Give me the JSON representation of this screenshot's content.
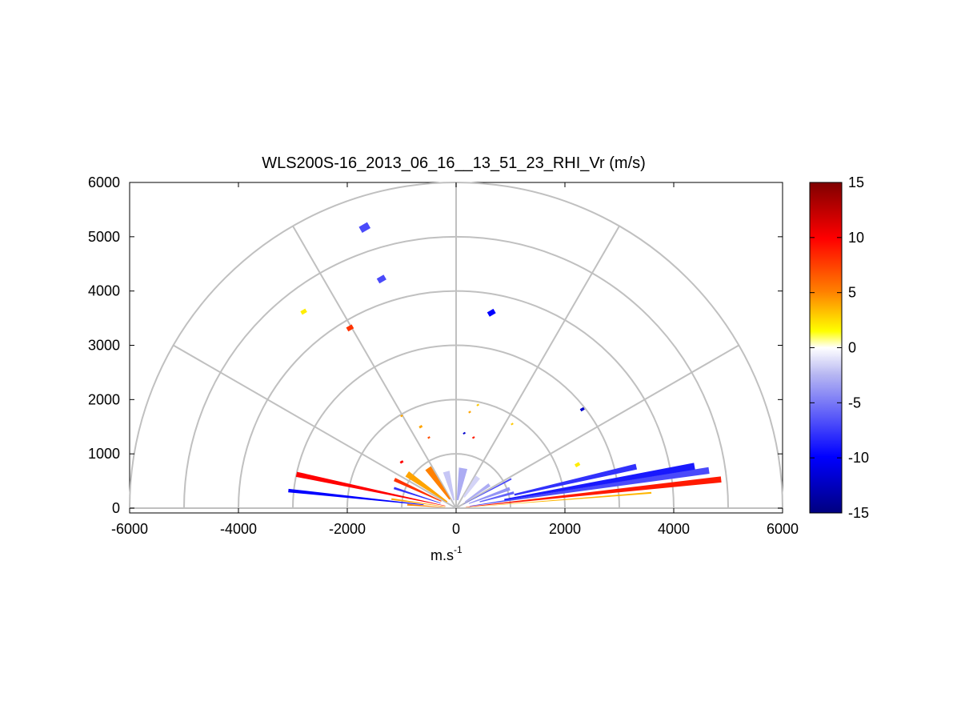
{
  "chart_data": {
    "type": "rhi",
    "title": "WLS200S-16_2013_06_16__13_51_23_RHI_Vr (m/s)",
    "xlabel": "m.s",
    "xlabel_superscript": "-1",
    "xlim": [
      -6000,
      6000
    ],
    "ylim": [
      0,
      6000
    ],
    "x_ticks": [
      "-6000",
      "-4000",
      "-2000",
      "0",
      "2000",
      "4000",
      "6000"
    ],
    "y_ticks": [
      "0",
      "1000",
      "2000",
      "3000",
      "4000",
      "5000",
      "6000"
    ],
    "grid": {
      "range_rings": [
        1000,
        2000,
        3000,
        4000,
        5000,
        6000
      ],
      "spokes_deg": [
        0,
        30,
        60,
        90,
        120,
        150,
        180
      ]
    },
    "colorbar": {
      "range": [
        -15,
        15
      ],
      "ticks": [
        "15",
        "10",
        "5",
        "0",
        "-5",
        "-10",
        "-15"
      ],
      "colors": [
        "#00007f",
        "#0000ff",
        "#ffffff",
        "#ffff00",
        "#ff8000",
        "#ff0000",
        "#7f0000"
      ]
    },
    "rays": [
      {
        "az": 6.2,
        "r0": 180,
        "r1": 4900,
        "v": 9,
        "w": 1.3
      },
      {
        "az": 4.5,
        "r0": 150,
        "r1": 3600,
        "v": 3.5,
        "w": 0.5
      },
      {
        "az": 8.5,
        "r0": 250,
        "r1": 4700,
        "v": -7,
        "w": 1.5
      },
      {
        "az": 10,
        "r0": 900,
        "r1": 4450,
        "v": -9,
        "w": 1.6
      },
      {
        "az": 13,
        "r0": 1100,
        "r1": 3400,
        "v": -8,
        "w": 1.8
      },
      {
        "az": 15,
        "r0": 450,
        "r1": 1100,
        "v": -6,
        "w": 2.5
      },
      {
        "az": 20,
        "r0": 250,
        "r1": 1050,
        "v": -4,
        "w": 3.5
      },
      {
        "az": 28,
        "r0": 150,
        "r1": 1150,
        "v": -7,
        "w": 1.5
      },
      {
        "az": 35,
        "r0": 200,
        "r1": 750,
        "v": -3,
        "w": 5
      },
      {
        "az": 55,
        "r0": 250,
        "r1": 700,
        "v": -1.5,
        "w": 8
      },
      {
        "az": 80,
        "r0": 150,
        "r1": 750,
        "v": -3,
        "w": 12
      },
      {
        "az": 105,
        "r0": 150,
        "r1": 700,
        "v": -2,
        "w": 10
      },
      {
        "az": 125,
        "r0": 200,
        "r1": 900,
        "v": 5,
        "w": 8
      },
      {
        "az": 145,
        "r0": 200,
        "r1": 1100,
        "v": 4,
        "w": 6
      },
      {
        "az": 155,
        "r0": 300,
        "r1": 1250,
        "v": 8,
        "w": 3
      },
      {
        "az": 162,
        "r0": 300,
        "r1": 1200,
        "v": -8,
        "w": 2
      },
      {
        "az": 168,
        "r0": 200,
        "r1": 3000,
        "v": 10,
        "w": 1.8
      },
      {
        "az": 172,
        "r0": 200,
        "r1": 1200,
        "v": 4,
        "w": 1.5
      },
      {
        "az": 174,
        "r0": 600,
        "r1": 3100,
        "v": -10,
        "w": 1.2
      },
      {
        "az": 176,
        "r0": 200,
        "r1": 900,
        "v": 5,
        "w": 2
      }
    ],
    "points": [
      {
        "x": -1680,
        "y": 5170,
        "v": -7,
        "size": 12
      },
      {
        "x": -1370,
        "y": 4220,
        "v": -7,
        "size": 10
      },
      {
        "x": 650,
        "y": 3600,
        "v": -10,
        "size": 9
      },
      {
        "x": -1950,
        "y": 3320,
        "v": 8,
        "size": 8
      },
      {
        "x": -2800,
        "y": 3620,
        "v": 2,
        "size": 7
      },
      {
        "x": 2320,
        "y": 1820,
        "v": -12,
        "size": 5
      },
      {
        "x": -650,
        "y": 1500,
        "v": 4,
        "size": 4
      },
      {
        "x": -500,
        "y": 1300,
        "v": 7,
        "size": 3
      },
      {
        "x": 320,
        "y": 1300,
        "v": 9,
        "size": 3
      },
      {
        "x": 150,
        "y": 1380,
        "v": -12,
        "size": 3
      },
      {
        "x": 1030,
        "y": 1550,
        "v": 3,
        "size": 3
      },
      {
        "x": -1000,
        "y": 1700,
        "v": 4,
        "size": 3
      },
      {
        "x": 250,
        "y": 1770,
        "v": 4,
        "size": 3
      },
      {
        "x": 2230,
        "y": 800,
        "v": 2,
        "size": 6
      },
      {
        "x": -1000,
        "y": 850,
        "v": 10,
        "size": 4
      },
      {
        "x": 400,
        "y": 1900,
        "v": 3,
        "size": 3
      }
    ]
  }
}
